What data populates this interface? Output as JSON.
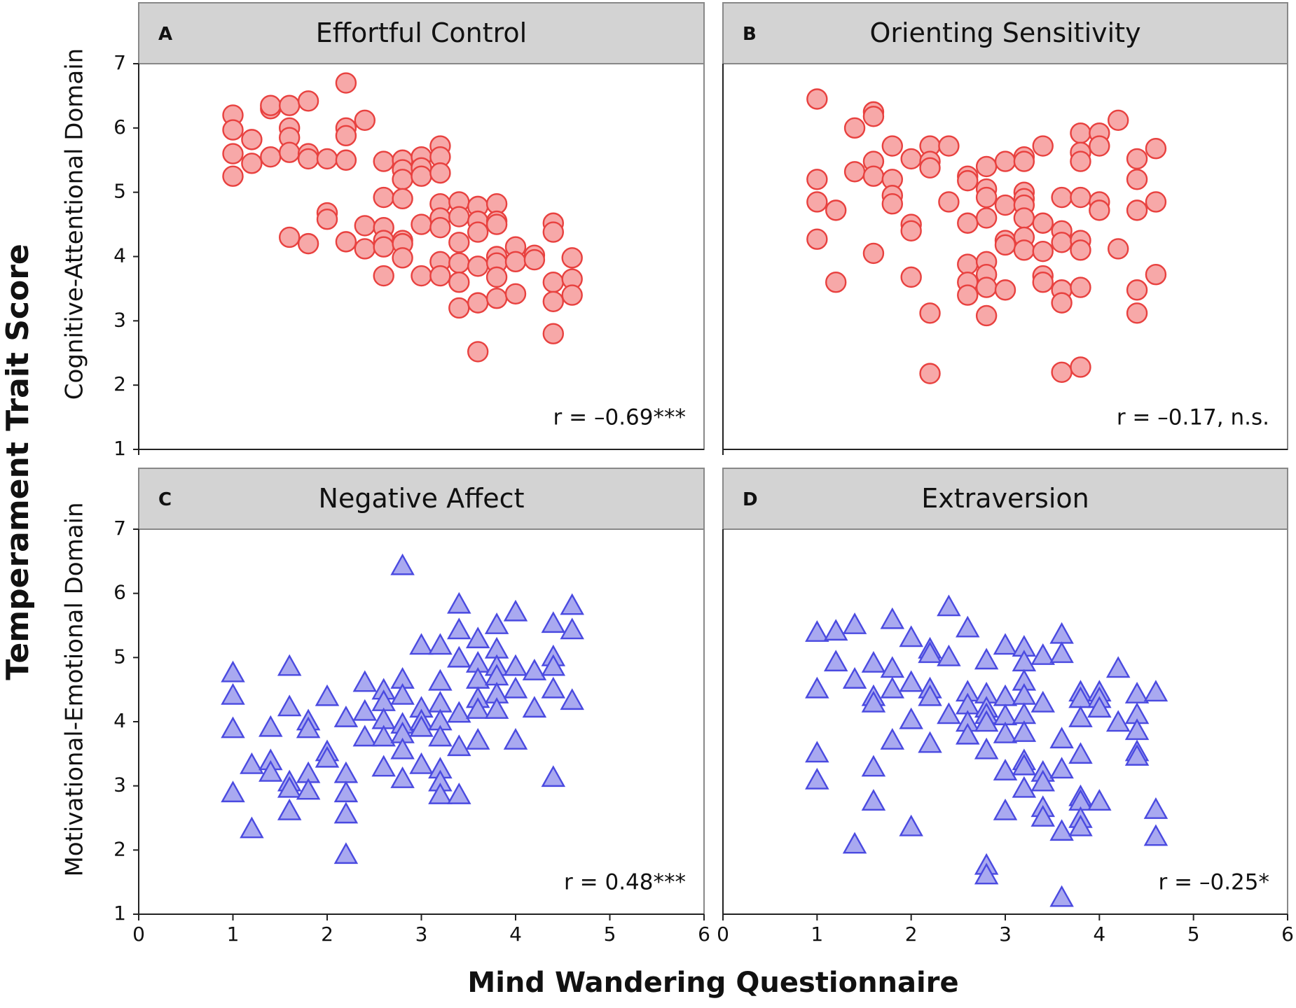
{
  "figure": {
    "xlabel": "Mind Wandering Questionnaire",
    "ylabel": "Temperament Trait Score",
    "row_labels": [
      "Cognitive-Attentional Domain",
      "Motivational-Emotional Domain"
    ]
  },
  "chart_data": [
    {
      "type": "scatter",
      "panel": "A",
      "title": "Effortful Control",
      "annotation": "r = –0.69***",
      "marker": "circle",
      "color": "#e8413f",
      "fill": "#f7a8a8",
      "xlim": [
        0,
        6
      ],
      "ylim": [
        1,
        7
      ],
      "yticks": [
        1,
        2,
        3,
        4,
        5,
        6,
        7
      ],
      "x": [
        1.0,
        1.0,
        1.0,
        1.0,
        1.2,
        1.2,
        1.4,
        1.4,
        1.4,
        1.6,
        1.6,
        1.6,
        1.6,
        1.6,
        1.8,
        1.8,
        1.8,
        1.8,
        2.0,
        2.0,
        2.0,
        2.2,
        2.2,
        2.2,
        2.2,
        2.2,
        2.4,
        2.4,
        2.4,
        2.6,
        2.6,
        2.6,
        2.6,
        2.6,
        2.6,
        2.8,
        2.8,
        2.8,
        2.8,
        2.8,
        2.8,
        2.8,
        3.0,
        3.0,
        3.0,
        3.0,
        3.0,
        3.2,
        3.2,
        3.2,
        3.2,
        3.2,
        3.2,
        3.2,
        3.2,
        3.4,
        3.4,
        3.4,
        3.4,
        3.4,
        3.4,
        3.6,
        3.6,
        3.6,
        3.6,
        3.6,
        3.6,
        3.8,
        3.8,
        3.8,
        3.8,
        3.8,
        3.8,
        3.8,
        4.0,
        4.0,
        4.0,
        4.2,
        4.2,
        4.4,
        4.4,
        4.4,
        4.4,
        4.4,
        4.6,
        4.6,
        4.6
      ],
      "y": [
        6.2,
        5.97,
        5.6,
        5.25,
        5.82,
        5.45,
        6.3,
        6.35,
        5.55,
        6.35,
        6.0,
        5.85,
        5.62,
        4.3,
        6.42,
        5.6,
        5.52,
        4.2,
        5.52,
        4.68,
        4.58,
        6.7,
        6.0,
        5.88,
        5.5,
        4.23,
        6.12,
        4.48,
        4.12,
        5.48,
        4.92,
        4.45,
        4.25,
        4.15,
        3.7,
        5.5,
        5.35,
        5.2,
        4.9,
        4.25,
        4.2,
        3.98,
        5.55,
        5.38,
        5.25,
        4.5,
        3.7,
        5.72,
        5.55,
        5.3,
        4.82,
        4.6,
        4.45,
        3.92,
        3.7,
        4.85,
        4.62,
        4.22,
        3.9,
        3.6,
        3.2,
        4.78,
        4.55,
        4.38,
        3.85,
        3.28,
        2.52,
        4.82,
        4.55,
        4.5,
        4.0,
        3.9,
        3.68,
        3.35,
        4.15,
        3.92,
        3.42,
        4.02,
        3.95,
        4.52,
        4.38,
        3.6,
        3.3,
        2.8,
        3.98,
        3.65,
        3.4
      ]
    },
    {
      "type": "scatter",
      "panel": "B",
      "title": "Orienting Sensitivity",
      "annotation": "r = –0.17, n.s.",
      "marker": "circle",
      "color": "#e8413f",
      "fill": "#f7a8a8",
      "xlim": [
        0,
        6
      ],
      "ylim": [
        1,
        7
      ],
      "x": [
        1.0,
        1.0,
        1.0,
        1.0,
        1.2,
        1.2,
        1.4,
        1.4,
        1.6,
        1.6,
        1.6,
        1.6,
        1.6,
        1.8,
        1.8,
        1.8,
        1.8,
        2.0,
        2.0,
        2.0,
        2.0,
        2.2,
        2.2,
        2.2,
        2.2,
        2.2,
        2.4,
        2.4,
        2.6,
        2.6,
        2.6,
        2.6,
        2.6,
        2.6,
        2.8,
        2.8,
        2.8,
        2.8,
        2.8,
        2.8,
        2.8,
        2.8,
        3.0,
        3.0,
        3.0,
        3.0,
        3.0,
        3.2,
        3.2,
        3.2,
        3.2,
        3.2,
        3.2,
        3.2,
        3.2,
        3.4,
        3.4,
        3.4,
        3.4,
        3.4,
        3.6,
        3.6,
        3.6,
        3.6,
        3.6,
        3.6,
        3.8,
        3.8,
        3.8,
        3.8,
        3.8,
        3.8,
        3.8,
        3.8,
        4.0,
        4.0,
        4.0,
        4.0,
        4.2,
        4.2,
        4.4,
        4.4,
        4.4,
        4.4,
        4.4,
        4.6,
        4.6,
        4.6
      ],
      "y": [
        6.45,
        5.2,
        4.85,
        4.27,
        4.72,
        3.6,
        6.0,
        5.32,
        6.25,
        6.18,
        5.48,
        5.25,
        4.05,
        5.72,
        5.2,
        4.95,
        4.82,
        5.52,
        4.5,
        4.4,
        3.68,
        5.72,
        5.48,
        5.38,
        3.12,
        2.18,
        5.72,
        4.85,
        5.25,
        5.18,
        4.52,
        3.88,
        3.6,
        3.4,
        5.4,
        5.05,
        4.92,
        4.6,
        3.92,
        3.72,
        3.52,
        3.08,
        5.48,
        4.8,
        4.25,
        4.18,
        3.48,
        5.55,
        5.48,
        5.0,
        4.9,
        4.8,
        4.6,
        4.3,
        4.1,
        5.72,
        4.52,
        4.08,
        3.7,
        3.6,
        4.92,
        4.4,
        4.22,
        3.48,
        3.28,
        2.2,
        5.92,
        5.62,
        5.48,
        4.92,
        4.25,
        4.1,
        3.52,
        2.28,
        5.92,
        5.72,
        4.85,
        4.72,
        6.12,
        4.12,
        5.52,
        5.2,
        4.72,
        3.48,
        3.12,
        5.68,
        4.85,
        3.72
      ]
    },
    {
      "type": "scatter",
      "panel": "C",
      "title": "Negative Affect",
      "annotation": "r = 0.48***",
      "marker": "triangle",
      "color": "#4a4ae0",
      "fill": "#a9a9f0",
      "xlim": [
        0,
        6
      ],
      "ylim": [
        1,
        7
      ],
      "xticks": [
        0,
        1,
        2,
        3,
        4,
        5,
        6
      ],
      "yticks": [
        1,
        2,
        3,
        4,
        5,
        6,
        7
      ],
      "x": [
        1.0,
        1.0,
        1.0,
        1.0,
        1.2,
        1.2,
        1.4,
        1.4,
        1.4,
        1.6,
        1.6,
        1.6,
        1.6,
        1.6,
        1.8,
        1.8,
        1.8,
        1.8,
        2.0,
        2.0,
        2.0,
        2.2,
        2.2,
        2.2,
        2.2,
        2.2,
        2.4,
        2.4,
        2.4,
        2.6,
        2.6,
        2.6,
        2.6,
        2.6,
        2.8,
        2.8,
        2.8,
        2.8,
        2.8,
        2.8,
        2.8,
        3.0,
        3.0,
        3.0,
        3.0,
        3.0,
        3.2,
        3.2,
        3.2,
        3.2,
        3.2,
        3.2,
        3.2,
        3.2,
        3.4,
        3.4,
        3.4,
        3.4,
        3.4,
        3.4,
        3.6,
        3.6,
        3.6,
        3.6,
        3.6,
        3.6,
        3.8,
        3.8,
        3.8,
        3.8,
        3.8,
        3.8,
        4.0,
        4.0,
        4.0,
        4.0,
        4.2,
        4.2,
        4.4,
        4.4,
        4.4,
        4.4,
        4.4,
        4.6,
        4.6,
        4.6
      ],
      "y": [
        4.75,
        4.4,
        3.88,
        2.88,
        3.32,
        2.32,
        3.9,
        3.38,
        3.2,
        4.85,
        4.22,
        3.05,
        2.95,
        2.6,
        4.0,
        3.88,
        3.18,
        2.92,
        4.38,
        3.52,
        3.42,
        4.05,
        3.18,
        2.88,
        2.55,
        1.92,
        4.6,
        4.15,
        3.75,
        4.48,
        4.3,
        4.02,
        3.75,
        3.28,
        6.42,
        4.65,
        4.4,
        3.95,
        3.8,
        3.55,
        3.1,
        5.18,
        4.2,
        4.0,
        3.9,
        3.32,
        5.18,
        4.62,
        4.28,
        4.0,
        3.75,
        3.25,
        3.05,
        2.85,
        5.82,
        5.42,
        4.98,
        4.12,
        3.6,
        2.85,
        5.28,
        4.9,
        4.65,
        4.35,
        4.18,
        3.7,
        5.5,
        5.12,
        4.85,
        4.7,
        4.42,
        4.18,
        5.7,
        4.85,
        4.5,
        3.7,
        4.78,
        4.2,
        5.52,
        5.0,
        4.85,
        4.5,
        3.12,
        5.8,
        5.42,
        4.32
      ]
    },
    {
      "type": "scatter",
      "panel": "D",
      "title": "Extraversion",
      "annotation": "r = –0.25*",
      "marker": "triangle",
      "color": "#4a4ae0",
      "fill": "#a9a9f0",
      "xlim": [
        0,
        6
      ],
      "ylim": [
        1,
        7
      ],
      "xticks": [
        0,
        1,
        2,
        3,
        4,
        5,
        6
      ],
      "x": [
        1.0,
        1.0,
        1.0,
        1.0,
        1.2,
        1.2,
        1.4,
        1.4,
        1.4,
        1.6,
        1.6,
        1.6,
        1.6,
        1.6,
        1.8,
        1.8,
        1.8,
        1.8,
        2.0,
        2.0,
        2.0,
        2.0,
        2.2,
        2.2,
        2.2,
        2.2,
        2.2,
        2.4,
        2.4,
        2.4,
        2.6,
        2.6,
        2.6,
        2.6,
        2.6,
        2.8,
        2.8,
        2.8,
        2.8,
        2.8,
        2.8,
        2.8,
        2.8,
        3.0,
        3.0,
        3.0,
        3.0,
        3.0,
        3.0,
        3.2,
        3.2,
        3.2,
        3.2,
        3.2,
        3.2,
        3.2,
        3.2,
        3.2,
        3.4,
        3.4,
        3.4,
        3.4,
        3.4,
        3.4,
        3.6,
        3.6,
        3.6,
        3.6,
        3.6,
        3.6,
        3.8,
        3.8,
        3.8,
        3.8,
        3.8,
        3.8,
        3.8,
        3.8,
        4.0,
        4.0,
        4.0,
        4.0,
        4.2,
        4.2,
        4.4,
        4.4,
        4.4,
        4.4,
        4.4,
        4.6,
        4.6,
        4.6
      ],
      "y": [
        5.38,
        4.5,
        3.5,
        3.08,
        5.4,
        4.92,
        5.5,
        4.65,
        2.08,
        4.9,
        4.38,
        4.28,
        3.28,
        2.75,
        5.58,
        4.82,
        4.5,
        3.7,
        5.3,
        4.6,
        4.02,
        2.35,
        5.12,
        5.05,
        4.5,
        4.38,
        3.65,
        5.78,
        5.0,
        4.1,
        5.45,
        4.45,
        4.25,
        3.98,
        3.78,
        4.95,
        4.42,
        4.2,
        4.1,
        3.98,
        3.55,
        1.75,
        1.6,
        5.18,
        4.38,
        4.08,
        3.8,
        3.22,
        2.6,
        5.15,
        4.92,
        4.62,
        4.4,
        4.1,
        3.82,
        3.38,
        3.3,
        2.95,
        5.02,
        4.28,
        3.2,
        3.05,
        2.65,
        2.5,
        5.35,
        5.05,
        3.72,
        3.25,
        2.28,
        1.25,
        4.45,
        4.35,
        4.05,
        3.48,
        2.82,
        2.75,
        2.48,
        2.35,
        4.45,
        4.35,
        4.2,
        2.75,
        4.82,
        3.98,
        4.42,
        4.1,
        3.85,
        3.52,
        3.45,
        4.45,
        2.62,
        2.2
      ]
    }
  ]
}
